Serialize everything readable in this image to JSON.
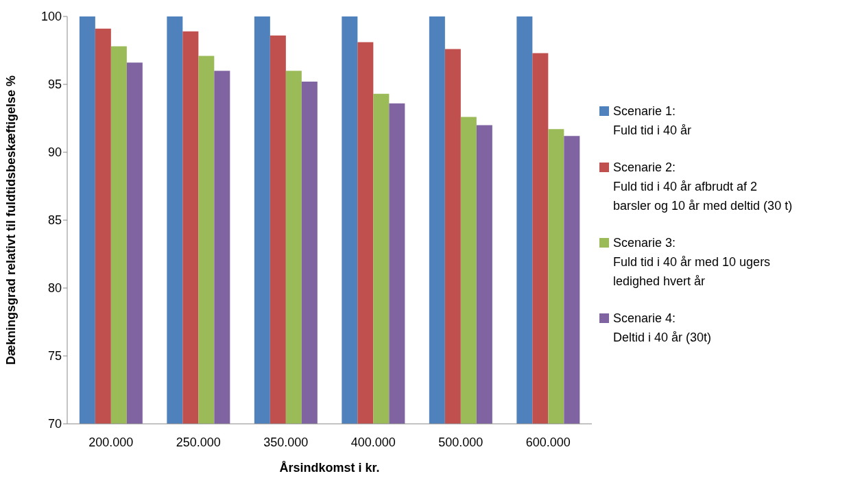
{
  "chart_data": {
    "type": "bar",
    "xlabel": "Årsindkomst i kr.",
    "ylabel": "Dækningsgrad relativt til fuldtidsbeskæftigelse %",
    "categories": [
      "200.000",
      "250.000",
      "350.000",
      "400.000",
      "500.000",
      "600.000"
    ],
    "series": [
      {
        "name": "Scenarie 1:\nFuld tid i 40 år",
        "color": "#4f81bd",
        "values": [
          100,
          100,
          100,
          100,
          100,
          100
        ]
      },
      {
        "name": "Scenarie 2:\nFuld tid i 40 år afbrudt af 2\nbarsler og 10 år med deltid (30 t)",
        "color": "#c0504d",
        "values": [
          99.1,
          98.9,
          98.6,
          98.1,
          97.6,
          97.3
        ]
      },
      {
        "name": "Scenarie 3:\nFuld tid i 40 år med 10 ugers\nledighed hvert år",
        "color": "#9bbb59",
        "values": [
          97.8,
          97.1,
          96.0,
          94.3,
          92.6,
          91.7
        ]
      },
      {
        "name": "Scenarie 4:\nDeltid i 40 år (30t)",
        "color": "#8064a2",
        "values": [
          96.6,
          96.0,
          95.2,
          93.6,
          92.0,
          91.2
        ]
      }
    ],
    "ylim": [
      70,
      100
    ],
    "yticks": [
      70,
      75,
      80,
      85,
      90,
      95,
      100
    ],
    "legend": "right"
  }
}
